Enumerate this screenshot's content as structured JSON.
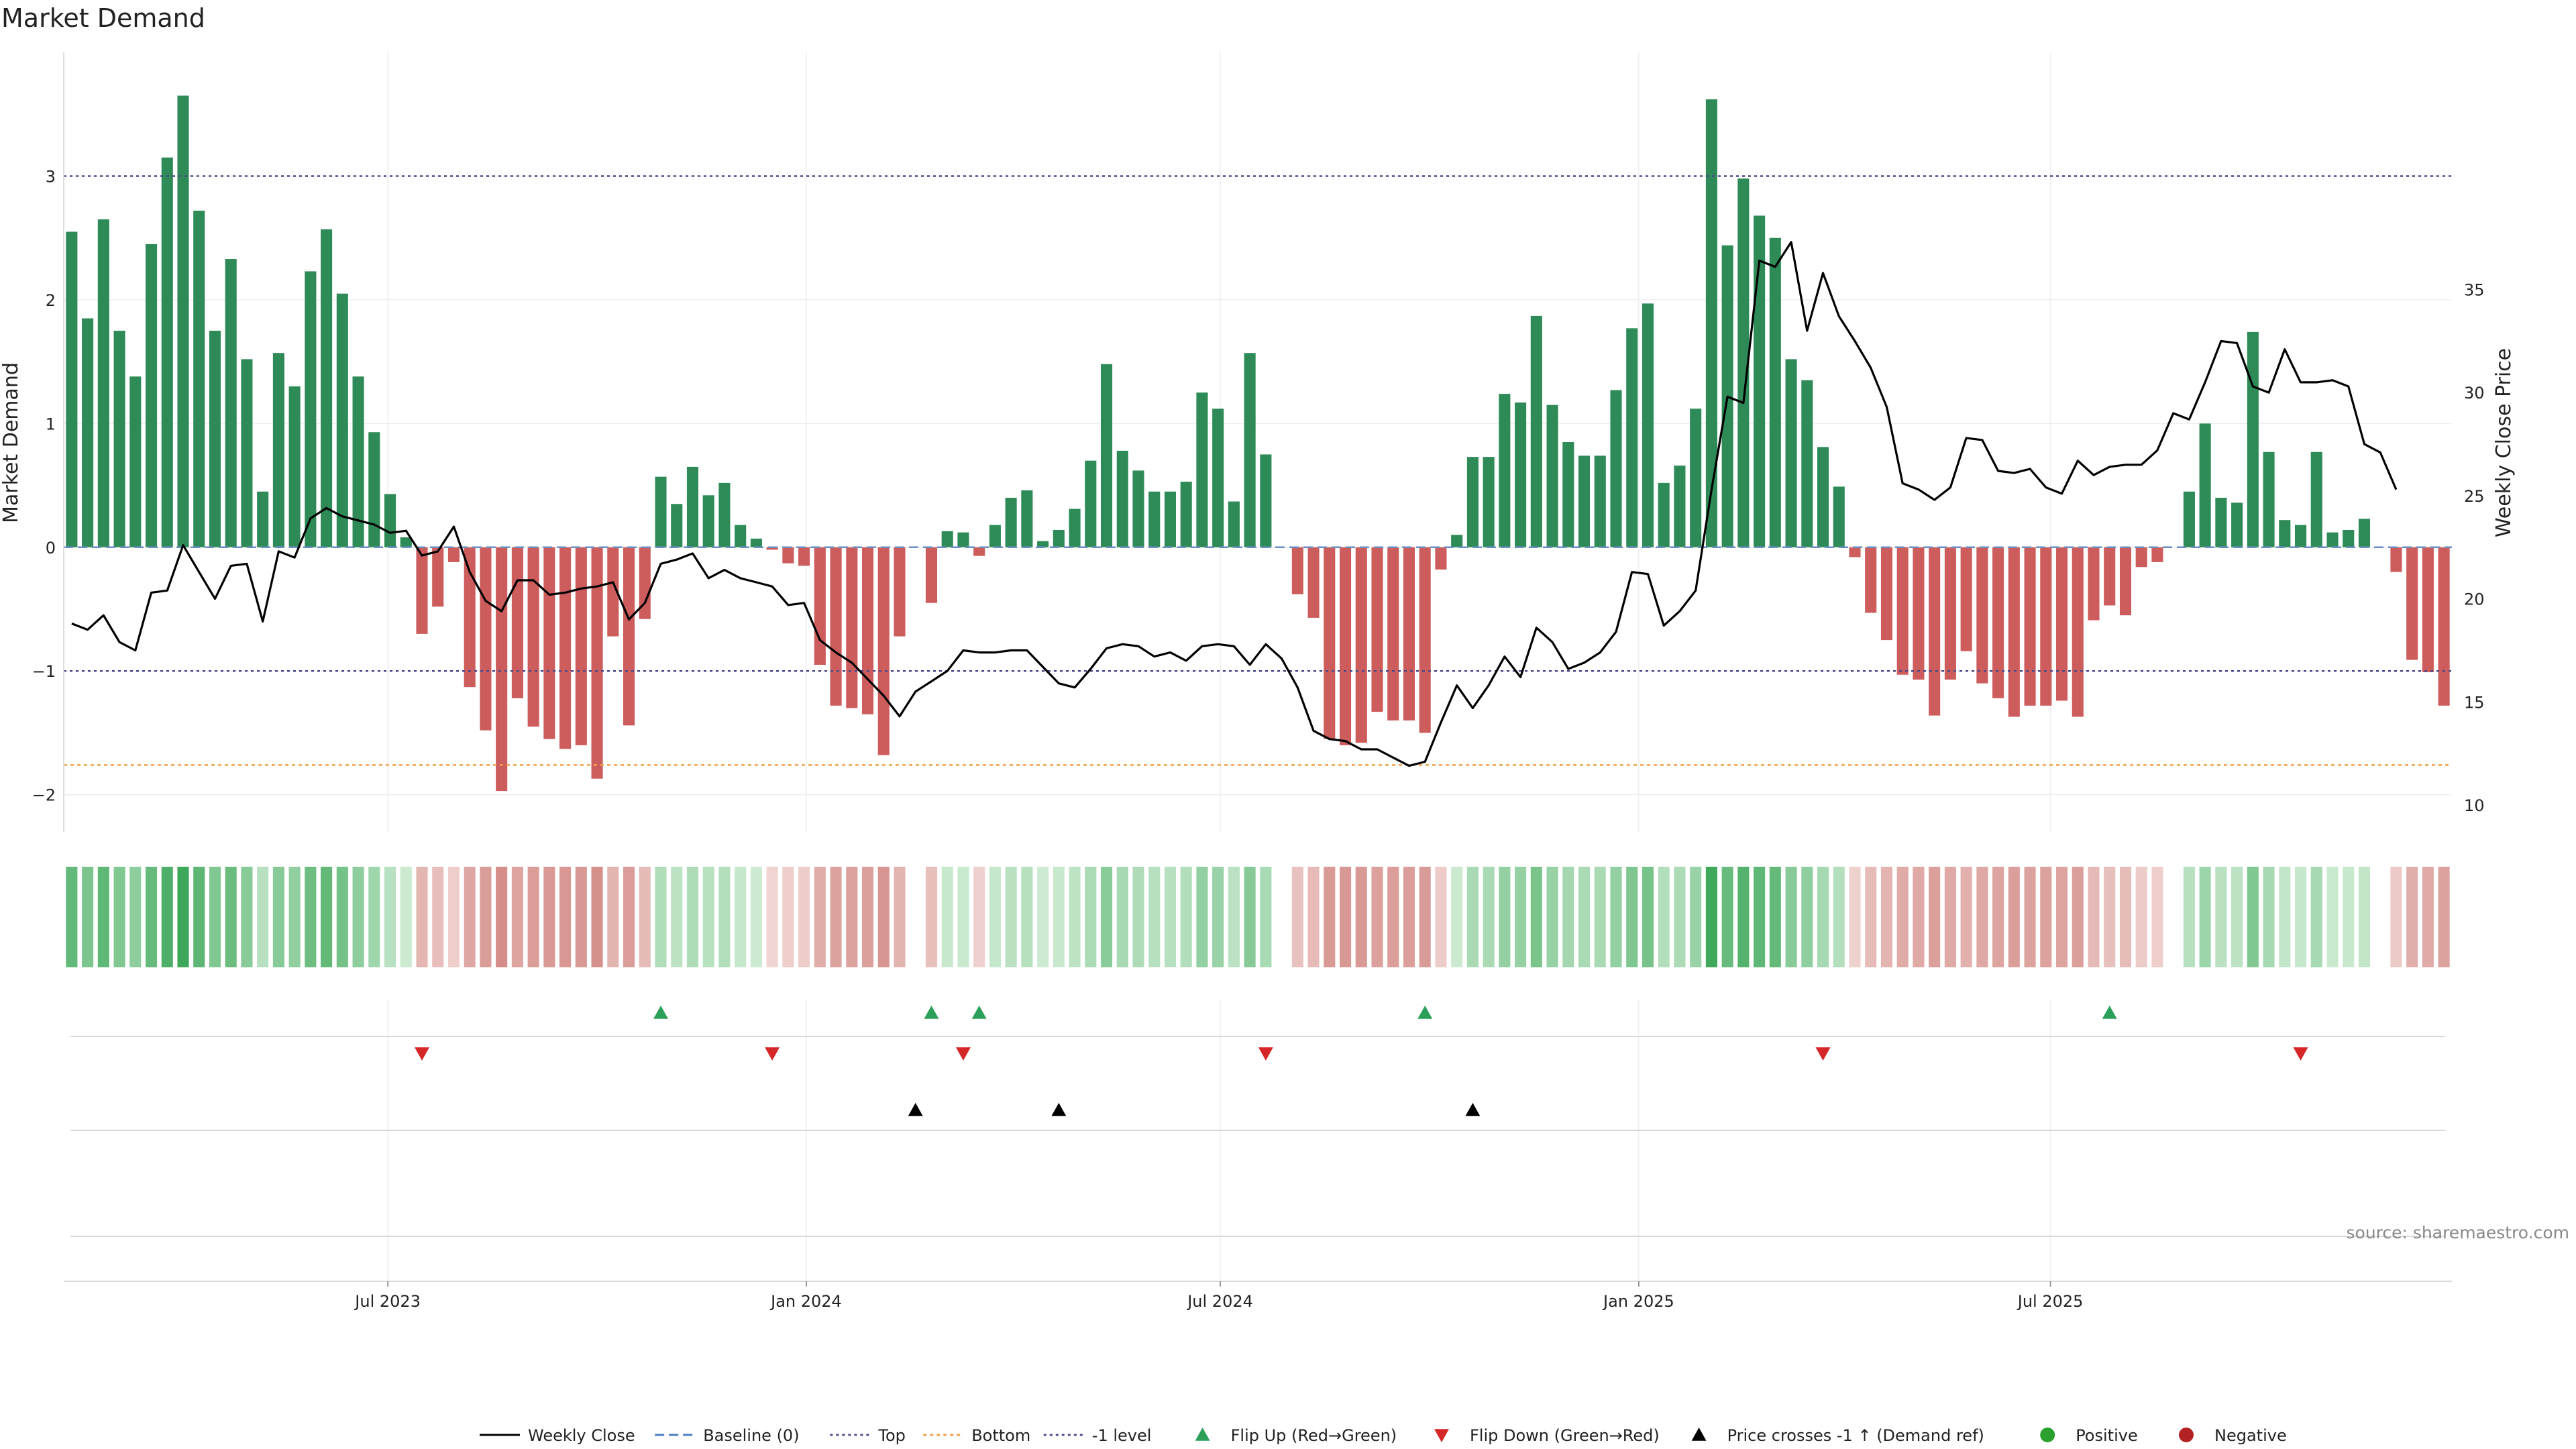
{
  "chart_data": {
    "type": "bar",
    "title": "Market Demand",
    "ylabel": "Market Demand",
    "y2label": "Weekly Close Price",
    "ylim": [
      -2.3,
      4.0
    ],
    "y_ticks": [
      -2,
      -1,
      0,
      1,
      2,
      3
    ],
    "y2lim": [
      8.7,
      46.5
    ],
    "y2_ticks": [
      10,
      15,
      20,
      25,
      30,
      35
    ],
    "reference_lines": {
      "top": 3,
      "bottom": -1.76,
      "minus_one_level": -1,
      "baseline": 0
    },
    "x_start": "2023-02-12",
    "x_step_days": 7,
    "x_ticks": [
      {
        "label": "Jul 2023",
        "date": "2023-07-01"
      },
      {
        "label": "Jan 2024",
        "date": "2024-01-01"
      },
      {
        "label": "Jul 2024",
        "date": "2024-07-01"
      },
      {
        "label": "Jan 2025",
        "date": "2025-01-01"
      },
      {
        "label": "Jul 2025",
        "date": "2025-07-01"
      }
    ],
    "demand": [
      2.55,
      1.85,
      2.65,
      1.75,
      1.38,
      2.45,
      3.15,
      3.65,
      2.72,
      1.75,
      2.33,
      1.52,
      0.45,
      1.57,
      1.3,
      2.23,
      2.57,
      2.05,
      1.38,
      0.93,
      0.43,
      0.08,
      -0.7,
      -0.48,
      -0.12,
      -1.13,
      -1.48,
      -1.97,
      -1.22,
      -1.45,
      -1.55,
      -1.63,
      -1.6,
      -1.87,
      -0.72,
      -1.44,
      -0.58,
      0.57,
      0.35,
      0.65,
      0.42,
      0.52,
      0.18,
      0.07,
      -0.02,
      -0.13,
      -0.15,
      -0.95,
      -1.28,
      -1.3,
      -1.35,
      -1.68,
      -0.72,
      0,
      -0.45,
      0.13,
      0.12,
      -0.07,
      0.18,
      0.4,
      0.46,
      0.05,
      0.14,
      0.31,
      0.7,
      1.48,
      0.78,
      0.62,
      0.45,
      0.45,
      0.53,
      1.25,
      1.12,
      0.37,
      1.57,
      0.75,
      0,
      -0.38,
      -0.57,
      -1.55,
      -1.6,
      -1.58,
      -1.33,
      -1.4,
      -1.4,
      -1.5,
      -0.18,
      0.1,
      0.73,
      0.73,
      1.24,
      1.17,
      1.87,
      1.15,
      0.85,
      0.74,
      0.74,
      1.27,
      1.77,
      1.97,
      0.52,
      0.66,
      1.12,
      3.62,
      2.44,
      2.98,
      2.68,
      2.5,
      1.52,
      1.35,
      0.81,
      0.49,
      -0.08,
      -0.53,
      -0.75,
      -1.03,
      -1.07,
      -1.36,
      -1.07,
      -0.84,
      -1.1,
      -1.22,
      -1.37,
      -1.28,
      -1.28,
      -1.24,
      -1.37,
      -0.59,
      -0.47,
      -0.55,
      -0.16,
      -0.12,
      0,
      0.45,
      1.0,
      0.4,
      0.36,
      1.74,
      0.77,
      0.22,
      0.18,
      0.77,
      0.12,
      0.14,
      0.23,
      0,
      -0.2,
      -0.91,
      -1.01,
      -1.28
    ],
    "price_points": [
      [
        0,
        18.8
      ],
      [
        1,
        18.5
      ],
      [
        2,
        19.2
      ],
      [
        3,
        17.9
      ],
      [
        4,
        17.5
      ],
      [
        5,
        20.3
      ],
      [
        6,
        20.4
      ],
      [
        7,
        22.6
      ],
      [
        8,
        21.3
      ],
      [
        9,
        20
      ],
      [
        10,
        21.6
      ],
      [
        11,
        21.7
      ],
      [
        12,
        18.9
      ],
      [
        13,
        22.3
      ],
      [
        14,
        22
      ],
      [
        15,
        23.9
      ],
      [
        16,
        24.4
      ],
      [
        17,
        24
      ],
      [
        18,
        23.8
      ],
      [
        19,
        23.6
      ],
      [
        20,
        23.2
      ],
      [
        21,
        23.3
      ],
      [
        22,
        22.1
      ],
      [
        23,
        22.3
      ],
      [
        24,
        23.5
      ],
      [
        25,
        21.3
      ],
      [
        26,
        19.9
      ],
      [
        27,
        19.4
      ],
      [
        28,
        20.9
      ],
      [
        29,
        20.9
      ],
      [
        30,
        20.2
      ],
      [
        31,
        20.3
      ],
      [
        32,
        20.5
      ],
      [
        33,
        20.6
      ],
      [
        34,
        20.8
      ],
      [
        35,
        19
      ],
      [
        36,
        19.8
      ],
      [
        37,
        21.7
      ],
      [
        38,
        21.9
      ],
      [
        39,
        22.2
      ],
      [
        40,
        21
      ],
      [
        41,
        21.4
      ],
      [
        42,
        21
      ],
      [
        43,
        20.8
      ],
      [
        44,
        20.6
      ],
      [
        45,
        19.7
      ],
      [
        46,
        19.8
      ],
      [
        47,
        18
      ],
      [
        48,
        17.4
      ],
      [
        49,
        16.9
      ],
      [
        50,
        16.1
      ],
      [
        51,
        15.3
      ],
      [
        52,
        14.3
      ],
      [
        53,
        15.5
      ],
      [
        54,
        16
      ],
      [
        55,
        16.5
      ],
      [
        56,
        17.5
      ],
      [
        57,
        17.4
      ],
      [
        58,
        17.4
      ],
      [
        59,
        17.5
      ],
      [
        60,
        17.5
      ],
      [
        61,
        16.7
      ],
      [
        62,
        15.9
      ],
      [
        63,
        15.7
      ],
      [
        64,
        16.6
      ],
      [
        65,
        17.6
      ],
      [
        66,
        17.8
      ],
      [
        67,
        17.7
      ],
      [
        68,
        17.2
      ],
      [
        69,
        17.4
      ],
      [
        70,
        17
      ],
      [
        71,
        17.7
      ],
      [
        72,
        17.8
      ],
      [
        73,
        17.7
      ],
      [
        74,
        16.8
      ],
      [
        75,
        17.8
      ],
      [
        76,
        17.1
      ],
      [
        77,
        15.7
      ],
      [
        78,
        13.6
      ],
      [
        79,
        13.2
      ],
      [
        80,
        13.1
      ],
      [
        81,
        12.7
      ],
      [
        82,
        12.7
      ],
      [
        83,
        12.3
      ],
      [
        84,
        11.9
      ],
      [
        85,
        12.1
      ],
      [
        86,
        14
      ],
      [
        87,
        15.8
      ],
      [
        88,
        14.7
      ],
      [
        89,
        15.8
      ],
      [
        90,
        17.2
      ],
      [
        91,
        16.2
      ],
      [
        92,
        18.6
      ],
      [
        93,
        17.9
      ],
      [
        94,
        16.6
      ],
      [
        95,
        16.9
      ],
      [
        96,
        17.4
      ],
      [
        97,
        18.4
      ],
      [
        98,
        21.3
      ],
      [
        99,
        21.2
      ],
      [
        100,
        18.7
      ],
      [
        101,
        19.4
      ],
      [
        102,
        20.4
      ],
      [
        103,
        25.3
      ],
      [
        104,
        29.8
      ],
      [
        105,
        29.5
      ],
      [
        106,
        36.4
      ],
      [
        107,
        36.1
      ],
      [
        108,
        37.3
      ],
      [
        109,
        33
      ],
      [
        110,
        35.8
      ],
      [
        111,
        33.7
      ],
      [
        112,
        32.5
      ],
      [
        113,
        31.2
      ],
      [
        114,
        29.3
      ],
      [
        115,
        25.6
      ],
      [
        116,
        25.3
      ],
      [
        117,
        24.8
      ],
      [
        118,
        25.4
      ],
      [
        119,
        27.8
      ],
      [
        120,
        27.7
      ],
      [
        121,
        26.2
      ],
      [
        122,
        26.1
      ],
      [
        123,
        26.3
      ],
      [
        124,
        25.4
      ],
      [
        125,
        25.1
      ],
      [
        126,
        26.7
      ],
      [
        127,
        26
      ],
      [
        128,
        26.4
      ],
      [
        129,
        26.5
      ],
      [
        130,
        26.5
      ],
      [
        131,
        27.2
      ],
      [
        132,
        29
      ],
      [
        133,
        28.7
      ],
      [
        134,
        30.5
      ],
      [
        135,
        32.5
      ],
      [
        136,
        32.4
      ],
      [
        137,
        30.3
      ],
      [
        138,
        30
      ],
      [
        139,
        32.1
      ],
      [
        140,
        30.5
      ],
      [
        141,
        30.5
      ],
      [
        142,
        30.6
      ],
      [
        143,
        30.3
      ],
      [
        144,
        27.5
      ],
      [
        145,
        27.1
      ],
      [
        146,
        25.3
      ]
    ],
    "flip_up_weeks": [
      37,
      54,
      57,
      85,
      128
    ],
    "flip_down_weeks": [
      22,
      44,
      56,
      75,
      110,
      140
    ],
    "price_cross_weeks": [
      53,
      62,
      88
    ],
    "legend": [
      "Weekly Close",
      "Baseline (0)",
      "Top",
      "Bottom",
      "-1 level",
      "Flip Up (Red→Green)",
      "Flip Down (Green→Red)",
      "Price crosses -1 ↑ (Demand ref)",
      "Positive",
      "Negative"
    ],
    "source": "source: sharemaestro.com"
  },
  "colors": {
    "positive": "#2e8b57",
    "negative": "#cd5c5c",
    "price_line": "#000000",
    "top_line": "#4b4b8a",
    "bottom_line": "#f0a24a",
    "flip_up": "#2ca05a",
    "flip_down": "#d62728",
    "positive_dot": "#2ca02c",
    "negative_dot": "#b22222"
  }
}
